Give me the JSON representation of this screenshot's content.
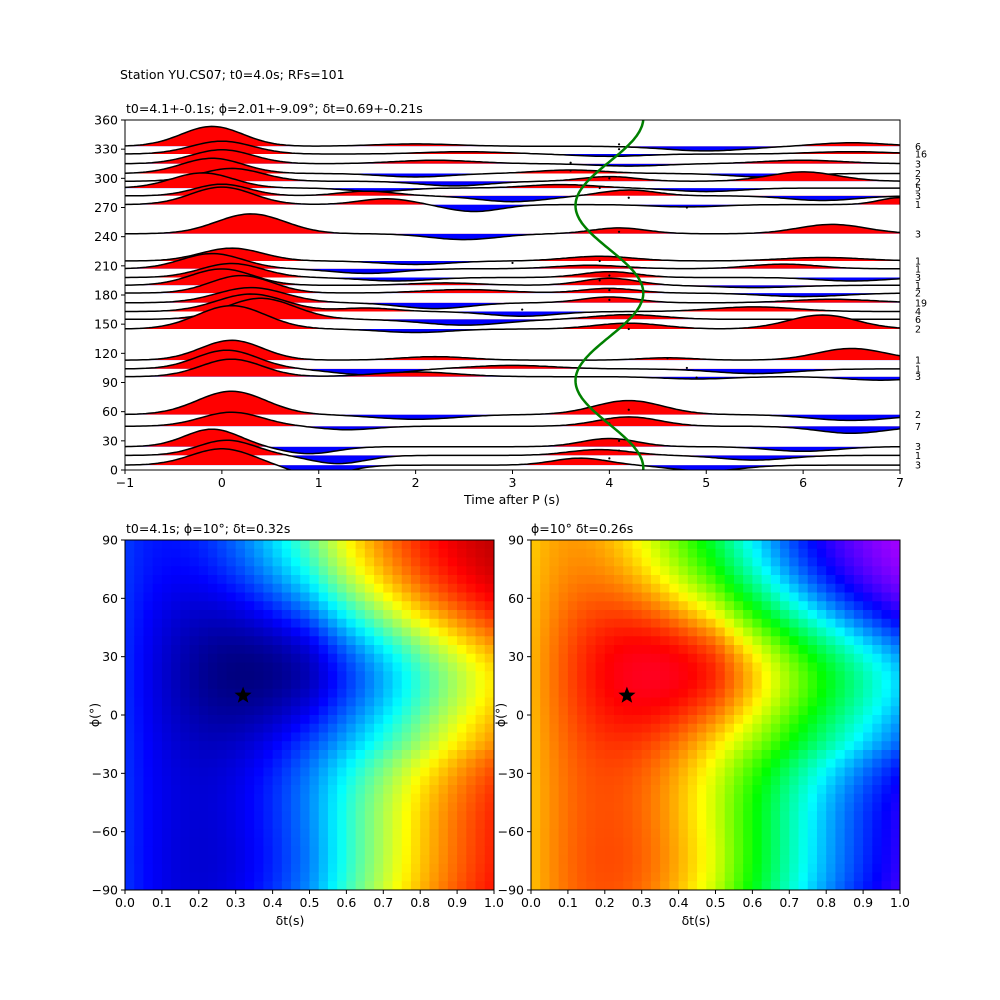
{
  "suptitle": "Station YU.CS07; t0=4.0s; RFs=101",
  "chart_data": [
    {
      "type": "line",
      "title": "t0=4.1+-0.1s; ϕ=2.01+-9.09°; δt=0.69+-0.21s",
      "xlabel": "Time after P (s)",
      "ylabel": "",
      "xlim": [
        -1,
        7
      ],
      "ylim": [
        0,
        360
      ],
      "xticks": [
        "−1",
        "0",
        "1",
        "2",
        "3",
        "4",
        "5",
        "6",
        "7"
      ],
      "yticks": [
        "0",
        "30",
        "60",
        "90",
        "120",
        "150",
        "180",
        "210",
        "240",
        "270",
        "300",
        "330",
        "360"
      ],
      "positive_fill_color": "#ff0000",
      "negative_fill_color": "#0000ff",
      "trace_color": "#000000",
      "curve_color": "#008000",
      "fit_curve": {
        "center_s": 4.0,
        "amplitude_s": 0.35,
        "period_deg": 180,
        "phase_deg": 2
      },
      "traces": [
        {
          "baz": 5,
          "count": "3",
          "peaks": [
            [
              0.0,
              1.4,
              0.45
            ],
            [
              1.0,
              -0.9,
              0.4
            ],
            [
              3.7,
              0.6,
              0.4
            ],
            [
              5.0,
              -0.5,
              0.5
            ]
          ],
          "mark": [
            4.0,
            12
          ]
        },
        {
          "baz": 15,
          "count": "1",
          "peaks": [
            [
              0.05,
              1.3,
              0.42
            ],
            [
              1.2,
              -0.7,
              0.4
            ],
            [
              3.9,
              0.5,
              0.45
            ],
            [
              5.5,
              -0.4,
              0.5
            ]
          ],
          "mark": [
            4.1,
            20
          ]
        },
        {
          "baz": 24,
          "count": "3",
          "peaks": [
            [
              -0.1,
              1.5,
              0.4
            ],
            [
              0.9,
              -0.6,
              0.4
            ],
            [
              4.0,
              0.7,
              0.4
            ],
            [
              6.0,
              -0.4,
              0.5
            ]
          ],
          "mark": [
            4.1,
            30
          ]
        },
        {
          "baz": 45,
          "count": "7",
          "peaks": [
            [
              0.1,
              1.2,
              0.45
            ],
            [
              1.3,
              -0.3,
              0.4
            ],
            [
              4.2,
              0.8,
              0.45
            ],
            [
              6.5,
              -0.6,
              0.5
            ]
          ],
          "mark": [
            4.0,
            48
          ]
        },
        {
          "baz": 57,
          "count": "2",
          "peaks": [
            [
              0.1,
              2.0,
              0.5
            ],
            [
              2.0,
              -0.4,
              0.6
            ],
            [
              4.2,
              1.2,
              0.5
            ],
            [
              6.5,
              -0.5,
              0.6
            ]
          ],
          "mark": [
            4.2,
            62
          ]
        },
        {
          "baz": 96,
          "count": "3",
          "peaks": [
            [
              0.1,
              1.5,
              0.45
            ],
            [
              2.0,
              0.4,
              0.6
            ],
            [
              4.9,
              -0.2,
              0.5
            ],
            [
              6.8,
              -0.3,
              0.5
            ]
          ],
          "mark": [
            4.9,
            95
          ]
        },
        {
          "baz": 104,
          "count": "1",
          "peaks": [
            [
              0.05,
              1.6,
              0.45
            ],
            [
              1.5,
              -0.5,
              0.5
            ],
            [
              3.0,
              0.3,
              0.6
            ],
            [
              5.5,
              -0.4,
              0.6
            ]
          ],
          "mark": [
            4.8,
            105
          ]
        },
        {
          "baz": 113,
          "count": "1",
          "peaks": [
            [
              0.1,
              1.7,
              0.45
            ],
            [
              2.2,
              0.3,
              0.5
            ],
            [
              4.6,
              0.2,
              0.4
            ],
            [
              6.5,
              1.0,
              0.5
            ]
          ],
          "mark": [
            4.6,
            115
          ]
        },
        {
          "baz": 145,
          "count": "2",
          "peaks": [
            [
              0.1,
              2.0,
              0.5
            ],
            [
              2.0,
              -0.3,
              0.5
            ],
            [
              4.2,
              0.5,
              0.5
            ],
            [
              6.2,
              1.2,
              0.5
            ]
          ],
          "mark": [
            4.2,
            145
          ]
        },
        {
          "baz": 155,
          "count": "6",
          "peaks": [
            [
              0.4,
              1.8,
              0.5
            ],
            [
              2.5,
              -0.5,
              0.6
            ],
            [
              4.2,
              0.4,
              0.5
            ]
          ],
          "mark": [
            4.2,
            155
          ]
        },
        {
          "baz": 163,
          "count": "4",
          "peaks": [
            [
              0.3,
              1.5,
              0.5
            ],
            [
              1.5,
              0.3,
              0.4
            ],
            [
              3.1,
              -0.4,
              0.5
            ],
            [
              5.5,
              0.4,
              0.6
            ]
          ],
          "mark": [
            3.1,
            165
          ]
        },
        {
          "baz": 172,
          "count": "19",
          "peaks": [
            [
              0.3,
              1.3,
              0.5
            ],
            [
              2.2,
              -0.5,
              0.5
            ],
            [
              4.0,
              0.5,
              0.4
            ],
            [
              6.3,
              0.3,
              0.6
            ]
          ],
          "mark": [
            4.0,
            175
          ]
        },
        {
          "baz": 182,
          "count": "2",
          "peaks": [
            [
              0.2,
              1.5,
              0.45
            ],
            [
              2.5,
              0.3,
              0.6
            ],
            [
              4.0,
              0.4,
              0.4
            ],
            [
              6.0,
              -0.3,
              0.6
            ]
          ],
          "mark": [
            4.0,
            185
          ]
        },
        {
          "baz": 190,
          "count": "1",
          "peaks": [
            [
              0.0,
              1.4,
              0.45
            ],
            [
              2.3,
              0.2,
              0.5
            ],
            [
              4.0,
              0.6,
              0.4
            ],
            [
              5.5,
              -0.2,
              0.6
            ]
          ],
          "mark": [
            3.9,
            195
          ]
        },
        {
          "baz": 198,
          "count": "3",
          "peaks": [
            [
              0.1,
              1.2,
              0.45
            ],
            [
              1.8,
              -0.3,
              0.5
            ],
            [
              4.0,
              0.5,
              0.4
            ],
            [
              6.5,
              -0.3,
              0.5
            ]
          ],
          "mark": [
            4.0,
            200
          ]
        },
        {
          "baz": 207,
          "count": "1",
          "peaks": [
            [
              -0.1,
              1.3,
              0.45
            ],
            [
              1.5,
              -0.4,
              0.5
            ],
            [
              3.8,
              0.3,
              0.5
            ],
            [
              5.8,
              0.4,
              0.5
            ]
          ],
          "mark": [
            3.0,
            213
          ]
        },
        {
          "baz": 215,
          "count": "1",
          "peaks": [
            [
              0.1,
              1.1,
              0.45
            ],
            [
              2.0,
              -0.3,
              0.5
            ],
            [
              3.9,
              0.4,
              0.5
            ],
            [
              6.2,
              0.3,
              0.6
            ]
          ],
          "mark": [
            3.9,
            215
          ]
        },
        {
          "baz": 243,
          "count": "3",
          "peaks": [
            [
              0.3,
              1.7,
              0.5
            ],
            [
              2.5,
              -0.5,
              0.5
            ],
            [
              4.1,
              0.5,
              0.4
            ],
            [
              6.3,
              0.8,
              0.5
            ]
          ],
          "mark": [
            4.1,
            245
          ]
        },
        {
          "baz": 273,
          "count": "1",
          "peaks": [
            [
              0.0,
              1.5,
              0.45
            ],
            [
              1.7,
              0.5,
              0.4
            ],
            [
              2.6,
              -0.6,
              0.4
            ],
            [
              4.8,
              -0.2,
              0.5
            ],
            [
              7.0,
              0.6,
              0.3
            ]
          ],
          "mark": [
            4.8,
            270
          ]
        },
        {
          "baz": 282,
          "count": "3",
          "peaks": [
            [
              0.0,
              1.0,
              0.4
            ],
            [
              1.5,
              0.4,
              0.4
            ],
            [
              3.0,
              -0.5,
              0.5
            ],
            [
              4.2,
              0.5,
              0.4
            ],
            [
              6.2,
              -0.4,
              0.5
            ]
          ],
          "mark": [
            4.2,
            280
          ]
        },
        {
          "baz": 290,
          "count": "5",
          "peaks": [
            [
              -0.2,
              1.3,
              0.45
            ],
            [
              1.6,
              -0.3,
              0.4
            ],
            [
              3.5,
              0.3,
              0.5
            ],
            [
              5.0,
              -0.3,
              0.5
            ]
          ],
          "mark": [
            3.9,
            290
          ]
        },
        {
          "baz": 297,
          "count": "2",
          "peaks": [
            [
              0.1,
              1.1,
              0.45
            ],
            [
              2.4,
              -0.4,
              0.5
            ],
            [
              4.0,
              0.4,
              0.4
            ],
            [
              6.0,
              0.8,
              0.5
            ]
          ],
          "mark": [
            4.0,
            300
          ]
        },
        {
          "baz": 305,
          "count": "2",
          "peaks": [
            [
              -0.1,
              1.3,
              0.45
            ],
            [
              2.0,
              -0.3,
              0.5
            ],
            [
              3.6,
              0.3,
              0.5
            ],
            [
              5.6,
              -0.3,
              0.5
            ]
          ],
          "mark": [
            3.6,
            308
          ]
        },
        {
          "baz": 315,
          "count": "3",
          "peaks": [
            [
              0.0,
              1.2,
              0.45
            ],
            [
              2.2,
              0.3,
              0.6
            ],
            [
              4.2,
              -0.2,
              0.5
            ],
            [
              6.0,
              0.3,
              0.6
            ]
          ],
          "mark": [
            3.6,
            316
          ]
        },
        {
          "baz": 325,
          "count": "16",
          "peaks": [
            [
              0.0,
              1.1,
              0.45
            ],
            [
              2.5,
              0.2,
              0.6
            ],
            [
              4.0,
              -0.2,
              0.5
            ],
            [
              6.5,
              0.2,
              0.6
            ]
          ],
          "mark": [
            4.1,
            330
          ]
        },
        {
          "baz": 333,
          "count": "6",
          "peaks": [
            [
              -0.1,
              1.7,
              0.45
            ],
            [
              2.0,
              0.2,
              0.6
            ],
            [
              5.0,
              -0.4,
              0.6
            ],
            [
              6.5,
              0.3,
              0.5
            ]
          ],
          "mark": [
            4.1,
            335
          ]
        }
      ]
    },
    {
      "type": "heatmap",
      "title": "t0=4.1s; ϕ=10°; δt=0.32s",
      "xlabel": "δt(s)",
      "ylabel": "ϕ(°)",
      "xlim": [
        0.0,
        1.0
      ],
      "ylim": [
        -90,
        90
      ],
      "xticks": [
        "0.0",
        "0.1",
        "0.2",
        "0.3",
        "0.4",
        "0.5",
        "0.6",
        "0.7",
        "0.8",
        "0.9",
        "1.0"
      ],
      "yticks": [
        "−90",
        "−60",
        "−30",
        "0",
        "30",
        "60",
        "90"
      ],
      "colormap": "jet",
      "optimum": {
        "dt": 0.32,
        "phi": 10
      },
      "marker": "black-star"
    },
    {
      "type": "heatmap",
      "title": "ϕ=10° δt=0.26s",
      "xlabel": "δt(s)",
      "ylabel": "ϕ(°)",
      "xlim": [
        0.0,
        1.0
      ],
      "ylim": [
        -90,
        90
      ],
      "xticks": [
        "0.0",
        "0.1",
        "0.2",
        "0.3",
        "0.4",
        "0.5",
        "0.6",
        "0.7",
        "0.8",
        "0.9",
        "1.0"
      ],
      "yticks": [
        "−90",
        "−60",
        "−30",
        "0",
        "30",
        "60",
        "90"
      ],
      "colormap": "hsv",
      "optimum": {
        "dt": 0.26,
        "phi": 10
      },
      "marker": "black-star"
    }
  ]
}
